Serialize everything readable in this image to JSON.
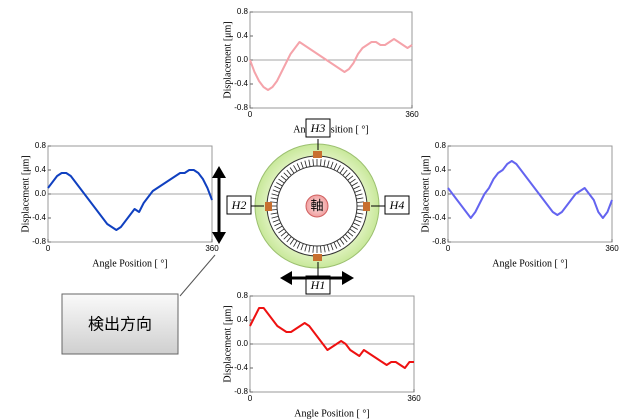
{
  "chart_data": [
    {
      "type": "line",
      "y_label": "Displacement [μm]",
      "x_label": "Angle Position [ °]",
      "ylim": [
        -0.8,
        0.8
      ],
      "yticks": [
        0.8,
        0.4,
        {
          "value": 0,
          "label": "0.0"
        },
        -0.4,
        -0.8
      ],
      "xlim": [
        0,
        360
      ],
      "xticks": [
        0,
        360
      ],
      "grid": false,
      "x": [
        0,
        10,
        20,
        30,
        40,
        50,
        60,
        70,
        80,
        90,
        100,
        110,
        120,
        130,
        140,
        150,
        160,
        170,
        180,
        190,
        200,
        210,
        220,
        230,
        240,
        250,
        260,
        270,
        280,
        290,
        300,
        310,
        320,
        330,
        340,
        350,
        360
      ],
      "series": [
        {
          "color": "#f5a3aa",
          "values": [
            0,
            -0.2,
            -0.35,
            -0.45,
            -0.5,
            -0.45,
            -0.35,
            -0.2,
            -0.05,
            0.1,
            0.2,
            0.3,
            0.25,
            0.2,
            0.15,
            0.1,
            0.05,
            0,
            -0.05,
            -0.1,
            -0.15,
            -0.2,
            -0.15,
            -0.05,
            0.1,
            0.2,
            0.25,
            0.3,
            0.3,
            0.25,
            0.25,
            0.3,
            0.35,
            0.3,
            0.25,
            0.2,
            0.25
          ]
        }
      ]
    },
    {
      "type": "line",
      "y_label": "Displacement [μm]",
      "x_label": "Angle Position [ °]",
      "ylim": [
        -0.8,
        0.8
      ],
      "yticks": [
        0.8,
        0.4,
        {
          "value": 0,
          "label": "0.0"
        },
        -0.4,
        -0.8
      ],
      "xlim": [
        0,
        360
      ],
      "xticks": [
        0,
        360
      ],
      "grid": false,
      "x": [
        0,
        10,
        20,
        30,
        40,
        50,
        60,
        70,
        80,
        90,
        100,
        110,
        120,
        130,
        140,
        150,
        160,
        170,
        180,
        190,
        200,
        210,
        220,
        230,
        240,
        250,
        260,
        270,
        280,
        290,
        300,
        310,
        320,
        330,
        340,
        350,
        360
      ],
      "series": [
        {
          "color": "#1040c0",
          "values": [
            0.1,
            0.2,
            0.3,
            0.35,
            0.35,
            0.3,
            0.2,
            0.1,
            0,
            -0.1,
            -0.2,
            -0.3,
            -0.4,
            -0.5,
            -0.55,
            -0.6,
            -0.55,
            -0.45,
            -0.35,
            -0.25,
            -0.3,
            -0.15,
            -0.05,
            0.05,
            0.1,
            0.15,
            0.2,
            0.25,
            0.3,
            0.35,
            0.35,
            0.4,
            0.4,
            0.35,
            0.25,
            0.1,
            -0.1
          ]
        }
      ]
    },
    {
      "type": "line",
      "y_label": "Displacement [μm]",
      "x_label": "Angle Position [ °]",
      "ylim": [
        -0.8,
        0.8
      ],
      "yticks": [
        0.8,
        0.4,
        {
          "value": 0,
          "label": "0.0"
        },
        -0.4,
        -0.8
      ],
      "xlim": [
        0,
        360
      ],
      "xticks": [
        0,
        360
      ],
      "grid": false,
      "x": [
        0,
        10,
        20,
        30,
        40,
        50,
        60,
        70,
        80,
        90,
        100,
        110,
        120,
        130,
        140,
        150,
        160,
        170,
        180,
        190,
        200,
        210,
        220,
        230,
        240,
        250,
        260,
        270,
        280,
        290,
        300,
        310,
        320,
        330,
        340,
        350,
        360
      ],
      "series": [
        {
          "color": "#6464f0",
          "values": [
            0.1,
            0,
            -0.1,
            -0.2,
            -0.3,
            -0.4,
            -0.3,
            -0.15,
            0,
            0.1,
            0.25,
            0.35,
            0.4,
            0.5,
            0.55,
            0.5,
            0.4,
            0.3,
            0.2,
            0.1,
            0,
            -0.1,
            -0.2,
            -0.3,
            -0.35,
            -0.3,
            -0.2,
            -0.1,
            0,
            0.05,
            0.1,
            0,
            -0.1,
            -0.3,
            -0.4,
            -0.3,
            -0.1
          ]
        }
      ]
    },
    {
      "type": "line",
      "y_label": "Displacement [μm]",
      "x_label": "Angle Position [ °]",
      "ylim": [
        -0.8,
        0.8
      ],
      "yticks": [
        0.8,
        0.4,
        {
          "value": 0,
          "label": "0.0"
        },
        -0.4,
        -0.8
      ],
      "xlim": [
        0,
        360
      ],
      "xticks": [
        0,
        360
      ],
      "grid": false,
      "x": [
        0,
        10,
        20,
        30,
        40,
        50,
        60,
        70,
        80,
        90,
        100,
        110,
        120,
        130,
        140,
        150,
        160,
        170,
        180,
        190,
        200,
        210,
        220,
        230,
        240,
        250,
        260,
        270,
        280,
        290,
        300,
        310,
        320,
        330,
        340,
        350,
        360
      ],
      "series": [
        {
          "color": "#ee1111",
          "values": [
            0.3,
            0.45,
            0.6,
            0.6,
            0.5,
            0.4,
            0.3,
            0.25,
            0.2,
            0.2,
            0.25,
            0.3,
            0.35,
            0.3,
            0.2,
            0.1,
            0,
            -0.1,
            -0.05,
            0,
            0.05,
            0,
            -0.1,
            -0.15,
            -0.2,
            -0.1,
            -0.15,
            -0.2,
            -0.25,
            -0.3,
            -0.35,
            -0.3,
            -0.3,
            -0.35,
            -0.4,
            -0.3,
            -0.3
          ]
        }
      ]
    }
  ],
  "diagram": {
    "shaft": "軸",
    "sensors": [
      "H1",
      "H2",
      "H3",
      "H4"
    ],
    "callout": "検出方向"
  }
}
